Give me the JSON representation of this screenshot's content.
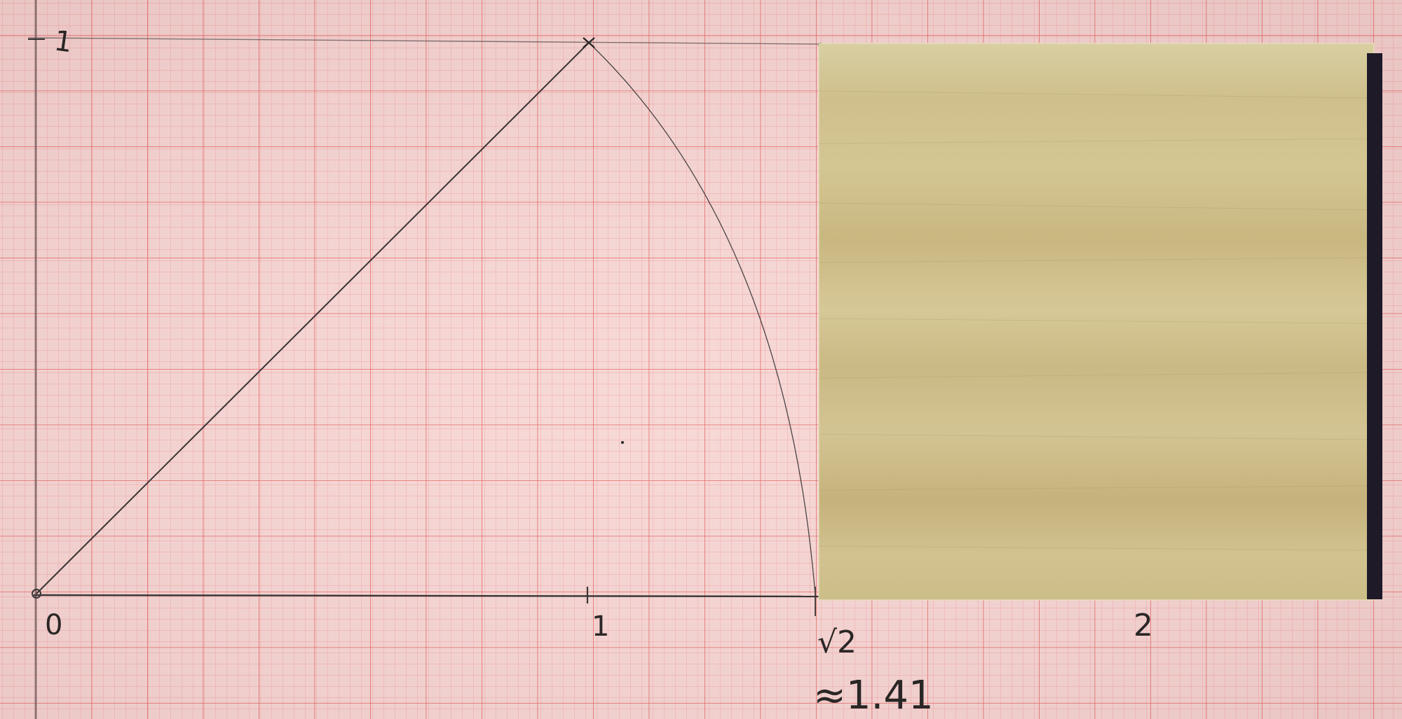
{
  "photo": {
    "subject": "sqrt-2-geometric-construction",
    "paper": {
      "background": "#f6d5d3",
      "minor_grid": "#ea8f8f",
      "major_grid": "#e0403c"
    },
    "pencil_color": "#3a3535",
    "wood_block": {
      "light": "#d9ca96",
      "dark": "#c7b37c",
      "edge": "#1e1a28"
    }
  },
  "labels": {
    "y_one": "1",
    "x_zero": "0",
    "x_one": "1",
    "sqrt_two": "√2",
    "approx": "≈1.41",
    "x_two": "2"
  }
}
